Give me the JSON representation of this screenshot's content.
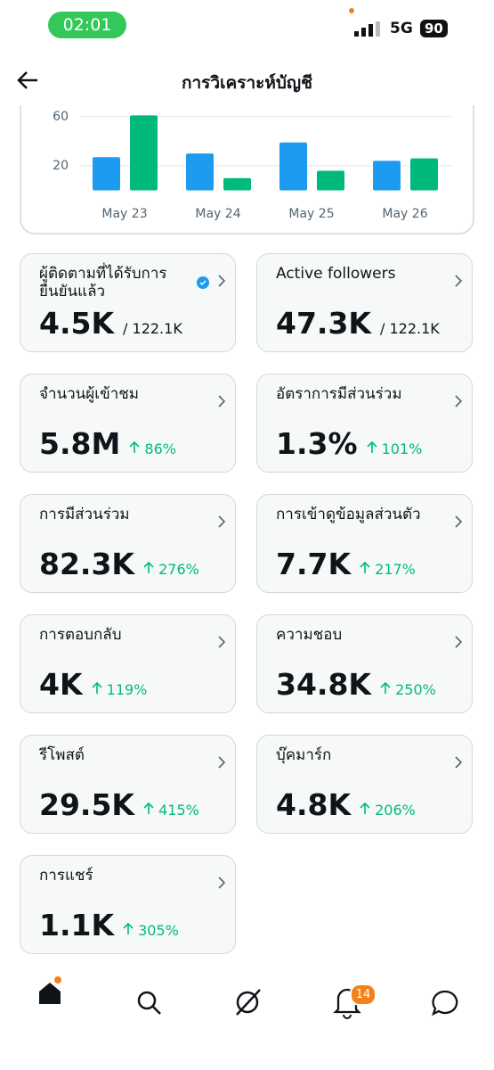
{
  "status": {
    "time": "02:01",
    "network": "5G",
    "battery": "90"
  },
  "header": {
    "title": "การวิเคราะห์บัญชี"
  },
  "chart_data": {
    "type": "bar",
    "categories": [
      "May 23",
      "May 24",
      "May 25",
      "May 26"
    ],
    "series": [
      {
        "color": "#1d9bf0",
        "values": [
          27,
          30,
          39,
          24
        ]
      },
      {
        "color": "#00ba7c",
        "values": [
          61,
          10,
          16,
          26
        ]
      }
    ],
    "ylim": [
      0,
      70
    ],
    "yticks": [
      20,
      60
    ],
    "grid": true
  },
  "cards": [
    {
      "label": "ผู้ติดตามที่ได้รับการยืนยันแล้ว",
      "value": "4.5K",
      "total": "/ 122.1K",
      "verified": true
    },
    {
      "label": "Active followers",
      "value": "47.3K",
      "total": "/ 122.1K"
    },
    {
      "label": "จำนวนผู้เข้าชม",
      "value": "5.8M",
      "change": "86%"
    },
    {
      "label": "อัตราการมีส่วนร่วม",
      "value": "1.3%",
      "change": "101%"
    },
    {
      "label": "การมีส่วนร่วม",
      "value": "82.3K",
      "change": "276%"
    },
    {
      "label": "การเข้าดูข้อมูลส่วนตัว",
      "value": "7.7K",
      "change": "217%"
    },
    {
      "label": "การตอบกลับ",
      "value": "4K",
      "change": "119%"
    },
    {
      "label": "ความชอบ",
      "value": "34.8K",
      "change": "250%"
    },
    {
      "label": "รีโพสต์",
      "value": "29.5K",
      "change": "415%"
    },
    {
      "label": "บุ๊คมาร์ก",
      "value": "4.8K",
      "change": "206%"
    },
    {
      "label": "การแชร์",
      "value": "1.1K",
      "change": "305%"
    }
  ],
  "nav": {
    "notifications_badge": "14"
  }
}
